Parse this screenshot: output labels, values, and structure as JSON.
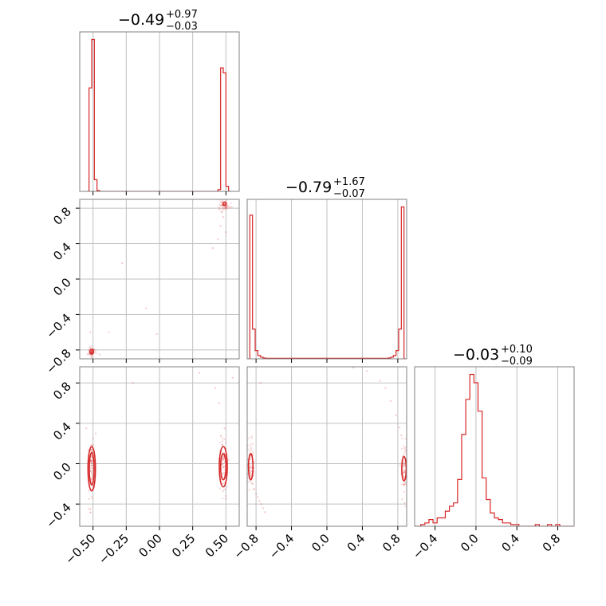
{
  "chart_data": {
    "type": "corner",
    "color": "#d62728",
    "parameters": 3,
    "panels": [
      {
        "id": "hist-0",
        "kind": "histogram",
        "row": 0,
        "col": 0,
        "title": {
          "median": "−0.49",
          "plus": "+0.97",
          "minus": "−0.03"
        },
        "xlim": [
          -0.6,
          0.6
        ],
        "xticks": [
          -0.5,
          -0.25,
          0.0,
          0.25,
          0.5
        ],
        "bin_edges": [
          -0.55,
          -0.53,
          -0.51,
          -0.49,
          -0.47,
          -0.45,
          -0.43,
          0.42,
          0.44,
          0.46,
          0.48,
          0.5,
          0.52,
          0.54
        ],
        "counts": [
          0.0,
          0.62,
          0.91,
          0.07,
          0.005,
          0.0,
          0.0,
          0.0,
          0.01,
          0.74,
          0.71,
          0.03,
          0.0
        ]
      },
      {
        "id": "hist-1",
        "kind": "histogram",
        "row": 1,
        "col": 1,
        "title": {
          "median": "−0.79",
          "plus": "+1.67",
          "minus": "−0.07"
        },
        "xlim": [
          -0.9,
          0.9
        ],
        "xticks": [
          -0.8,
          -0.4,
          0.0,
          0.4,
          0.8
        ],
        "bin_edges": [
          -0.9,
          -0.87,
          -0.84,
          -0.81,
          -0.78,
          -0.75,
          -0.72,
          -0.69,
          0.6,
          0.69,
          0.72,
          0.75,
          0.78,
          0.81,
          0.84,
          0.87,
          0.9
        ],
        "counts": [
          0.0,
          0.87,
          0.18,
          0.05,
          0.02,
          0.01,
          0.005,
          0.003,
          0.003,
          0.005,
          0.01,
          0.02,
          0.05,
          0.18,
          0.92,
          0.0
        ]
      },
      {
        "id": "hist-2",
        "kind": "histogram",
        "row": 2,
        "col": 2,
        "title": {
          "median": "−0.03",
          "plus": "+0.10",
          "minus": "−0.09"
        },
        "xlim": [
          -0.6,
          0.96
        ],
        "xticks": [
          -0.4,
          0.0,
          0.4,
          0.8
        ],
        "bin_edges": [
          -0.6,
          -0.54,
          -0.5,
          -0.46,
          -0.42,
          -0.38,
          -0.34,
          -0.3,
          -0.26,
          -0.22,
          -0.18,
          -0.14,
          -0.1,
          -0.06,
          -0.02,
          0.02,
          0.06,
          0.1,
          0.14,
          0.18,
          0.22,
          0.26,
          0.3,
          0.34,
          0.38,
          0.42,
          0.46,
          0.5,
          0.54,
          0.58,
          0.62,
          0.66,
          0.7,
          0.74,
          0.78,
          0.82,
          0.86,
          0.9,
          0.96
        ],
        "counts": [
          0.0,
          0.01,
          0.02,
          0.04,
          0.02,
          0.05,
          0.05,
          0.09,
          0.12,
          0.14,
          0.28,
          0.55,
          0.76,
          0.91,
          0.86,
          0.69,
          0.29,
          0.16,
          0.08,
          0.05,
          0.04,
          0.02,
          0.02,
          0.01,
          0.01,
          0.0,
          0.0,
          0.0,
          0.0,
          0.01,
          0.0,
          0.0,
          0.01,
          0.0,
          0.01,
          0.0,
          0.0,
          0.0
        ]
      },
      {
        "id": "scatter-1-0",
        "kind": "2d",
        "row": 1,
        "col": 0,
        "xlim": [
          -0.6,
          0.6
        ],
        "ylim": [
          -0.9,
          0.9
        ],
        "xticks": [
          -0.5,
          -0.25,
          0.0,
          0.25,
          0.5
        ],
        "yticks": [
          -0.8,
          -0.4,
          0.0,
          0.4,
          0.8
        ],
        "clusters": [
          {
            "center": [
              -0.51,
              -0.82
            ],
            "spread": [
              0.012,
              0.03
            ],
            "n": 60
          },
          {
            "center": [
              0.49,
              0.84
            ],
            "spread": [
              0.02,
              0.03
            ],
            "n": 60
          }
        ],
        "points": [
          [
            0.46,
            0.6
          ],
          [
            0.44,
            0.45
          ],
          [
            0.5,
            0.53
          ],
          [
            0.48,
            0.7
          ],
          [
            0.4,
            0.35
          ],
          [
            -0.28,
            0.18
          ],
          [
            -0.1,
            -0.33
          ],
          [
            -0.52,
            -0.6
          ],
          [
            -0.38,
            -0.6
          ],
          [
            -0.45,
            -0.85
          ],
          [
            -0.02,
            -0.62
          ],
          [
            0.47,
            0.76
          ]
        ],
        "contours": [
          {
            "center": [
              -0.51,
              -0.82
            ],
            "r": [
              0.014,
              0.025
            ]
          },
          {
            "center": [
              0.49,
              0.85
            ],
            "r": [
              0.012,
              0.02
            ]
          }
        ]
      },
      {
        "id": "scatter-2-0",
        "kind": "2d",
        "row": 2,
        "col": 0,
        "xlim": [
          -0.6,
          0.6
        ],
        "ylim": [
          -0.62,
          0.96
        ],
        "xticks": [
          -0.5,
          -0.25,
          0.0,
          0.25,
          0.5
        ],
        "yticks": [
          -0.4,
          0.0,
          0.4,
          0.8
        ],
        "clusters": [
          {
            "center": [
              -0.51,
              -0.05
            ],
            "spread": [
              0.012,
              0.14
            ],
            "n": 90
          },
          {
            "center": [
              0.48,
              -0.02
            ],
            "spread": [
              0.015,
              0.14
            ],
            "n": 90
          }
        ],
        "points": [
          [
            -0.52,
            -0.45
          ],
          [
            -0.53,
            -0.35
          ],
          [
            -0.5,
            0.25
          ],
          [
            -0.48,
            0.3
          ],
          [
            0.45,
            0.6
          ],
          [
            0.42,
            0.75
          ],
          [
            0.55,
            0.85
          ],
          [
            0.3,
            0.9
          ],
          [
            -0.2,
            0.8
          ],
          [
            0.49,
            0.35
          ],
          [
            0.5,
            -0.35
          ],
          [
            -0.55,
            0.35
          ]
        ],
        "contours": [
          {
            "center": [
              -0.51,
              -0.05
            ],
            "r": [
              0.018,
              0.16
            ]
          },
          {
            "center": [
              -0.51,
              -0.05
            ],
            "r": [
              0.028,
              0.22
            ]
          },
          {
            "center": [
              0.48,
              -0.03
            ],
            "r": [
              0.02,
              0.13
            ]
          },
          {
            "center": [
              0.48,
              -0.03
            ],
            "r": [
              0.03,
              0.2
            ]
          }
        ]
      },
      {
        "id": "scatter-2-1",
        "kind": "2d",
        "row": 2,
        "col": 1,
        "xlim": [
          -0.9,
          0.9
        ],
        "ylim": [
          -0.62,
          0.96
        ],
        "xticks": [
          -0.8,
          -0.4,
          0.0,
          0.4,
          0.8
        ],
        "yticks": [
          -0.4,
          0.0,
          0.4,
          0.8
        ],
        "clusters": [
          {
            "center": [
              -0.86,
              -0.03
            ],
            "spread": [
              0.02,
              0.12
            ],
            "n": 70
          },
          {
            "center": [
              0.87,
              -0.02
            ],
            "spread": [
              0.02,
              0.12
            ],
            "n": 70
          }
        ],
        "points": [
          [
            -0.84,
            -0.2
          ],
          [
            -0.82,
            -0.25
          ],
          [
            -0.8,
            -0.3
          ],
          [
            -0.78,
            -0.33
          ],
          [
            -0.76,
            -0.37
          ],
          [
            -0.74,
            -0.4
          ],
          [
            -0.72,
            -0.44
          ],
          [
            -0.7,
            -0.48
          ],
          [
            0.6,
            0.82
          ],
          [
            0.66,
            0.75
          ],
          [
            0.72,
            0.62
          ],
          [
            0.78,
            0.48
          ],
          [
            0.82,
            0.36
          ],
          [
            0.84,
            0.28
          ],
          [
            0.45,
            0.92
          ],
          [
            0.3,
            0.95
          ],
          [
            -0.75,
            0.8
          ],
          [
            0.85,
            -0.35
          ],
          [
            0.88,
            0.15
          ]
        ],
        "contours": [
          {
            "center": [
              -0.86,
              -0.03
            ],
            "r": [
              0.025,
              0.13
            ]
          },
          {
            "center": [
              0.87,
              -0.05
            ],
            "r": [
              0.025,
              0.12
            ]
          }
        ]
      }
    ]
  }
}
